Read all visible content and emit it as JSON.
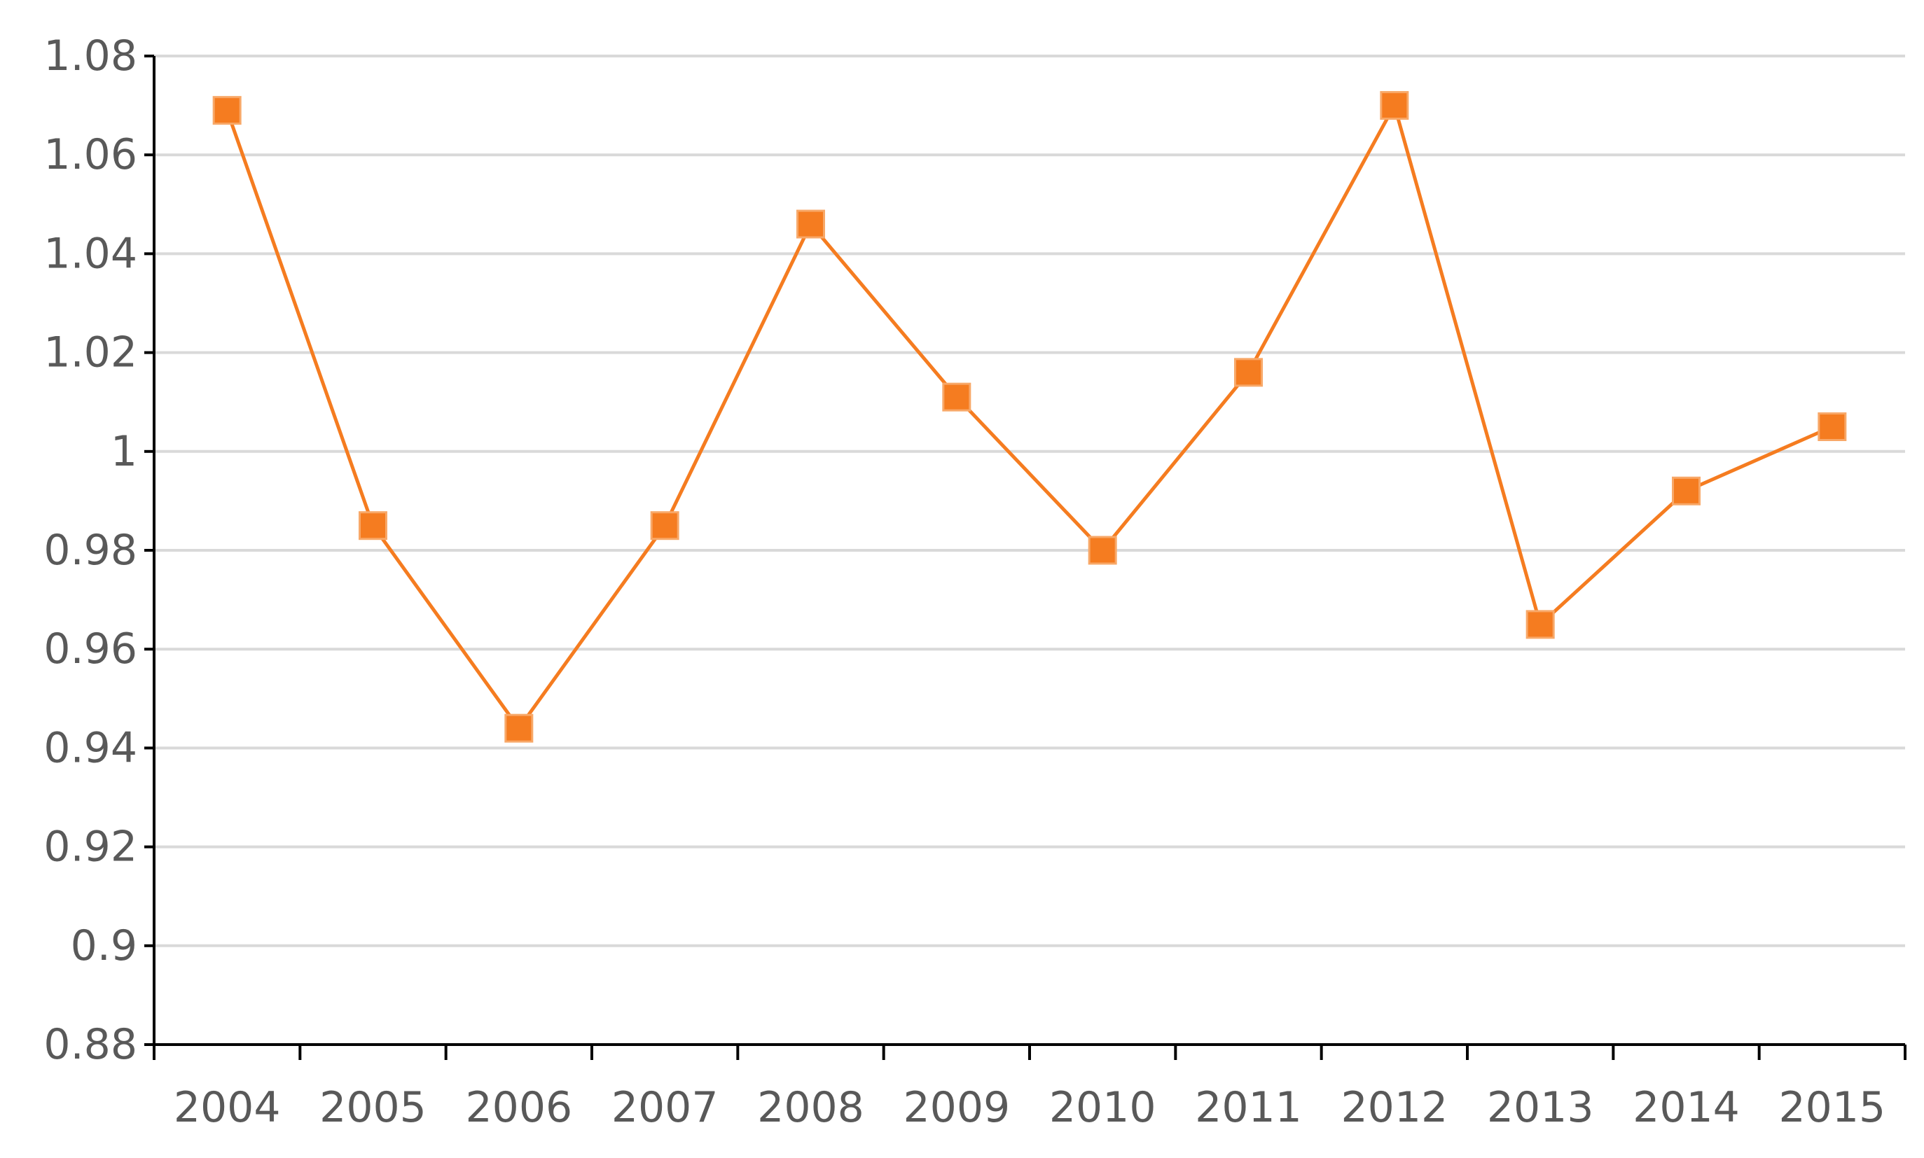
{
  "chart_data": {
    "type": "line",
    "title": "",
    "xlabel": "",
    "ylabel": "",
    "categories": [
      "2004",
      "2005",
      "2006",
      "2007",
      "2008",
      "2009",
      "2010",
      "2011",
      "2012",
      "2013",
      "2014",
      "2015"
    ],
    "series": [
      {
        "values": [
          1.069,
          0.985,
          0.944,
          0.985,
          1.046,
          1.011,
          0.98,
          1.016,
          1.07,
          0.965,
          0.992,
          1.005
        ],
        "color": "#f57c20",
        "marker": "square"
      }
    ],
    "ylim": [
      0.88,
      1.08
    ],
    "yticks": [
      0.88,
      0.9,
      0.92,
      0.94,
      0.96,
      0.98,
      1,
      1.02,
      1.04,
      1.06,
      1.08
    ],
    "ytick_labels": [
      "0.88",
      "0.9",
      "0.92",
      "0.94",
      "0.96",
      "0.98",
      "1",
      "1.02",
      "1.04",
      "1.06",
      "1.08"
    ],
    "grid": true,
    "legend": "none"
  }
}
